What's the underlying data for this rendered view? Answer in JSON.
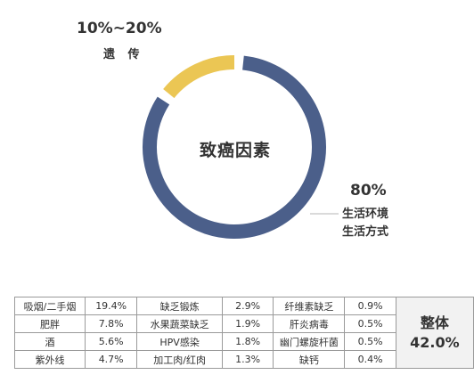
{
  "chart_data": {
    "type": "pie",
    "center_label": "致癌因素",
    "slices": [
      {
        "name_lines": [
          "生活环境",
          "生活方式"
        ],
        "value_label": "80%",
        "value": 80,
        "color": "#4b5f8a"
      },
      {
        "name_lines": [
          "遗 传"
        ],
        "value_label": "10%~20%",
        "value": 15,
        "color": "#ebc654"
      }
    ]
  },
  "table": {
    "rows": [
      {
        "cells": [
          {
            "name": "吸烟/二手烟",
            "pct": "19.4%"
          },
          {
            "name": "缺乏锻炼",
            "pct": "2.9%"
          },
          {
            "name": "纤维素缺乏",
            "pct": "0.9%"
          }
        ]
      },
      {
        "cells": [
          {
            "name": "肥胖",
            "pct": "7.8%"
          },
          {
            "name": "水果蔬菜缺乏",
            "pct": "1.9%"
          },
          {
            "name": "肝炎病毒",
            "pct": "0.5%"
          }
        ]
      },
      {
        "cells": [
          {
            "name": "酒",
            "pct": "5.6%"
          },
          {
            "name": "HPV感染",
            "pct": "1.8%"
          },
          {
            "name": "幽门螺旋杆菌",
            "pct": "0.5%"
          }
        ]
      },
      {
        "cells": [
          {
            "name": "紫外线",
            "pct": "4.7%"
          },
          {
            "name": "加工肉/红肉",
            "pct": "1.3%"
          },
          {
            "name": "缺钙",
            "pct": "0.4%"
          }
        ]
      }
    ],
    "total": {
      "label": "整体",
      "value": "42.0%"
    }
  }
}
